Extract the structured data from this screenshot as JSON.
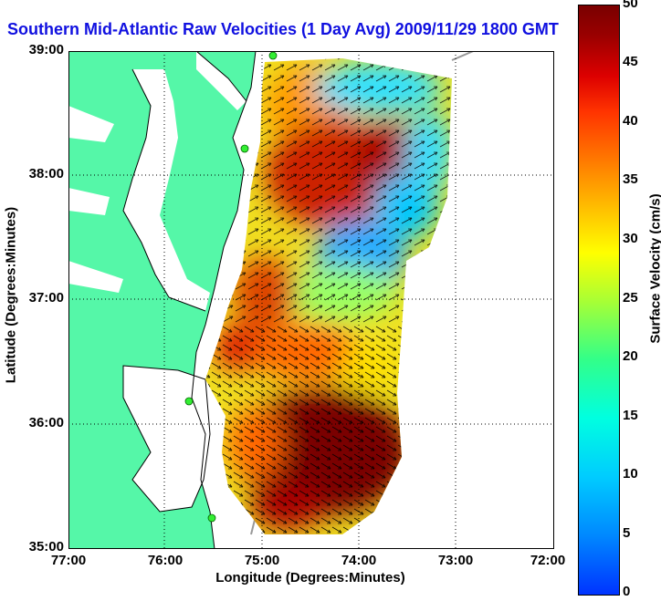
{
  "title": "Southern Mid-Atlantic Raw Velocities (1 Day Avg) 2009/11/29 1800 GMT",
  "map": {
    "x_ticks": [
      "77:00",
      "76:00",
      "75:00",
      "74:00",
      "73:00",
      "72:00"
    ],
    "y_ticks": [
      "39:00",
      "38:00",
      "37:00",
      "36:00",
      "35:00"
    ],
    "xlabel": "Longitude (Degrees:Minutes)",
    "ylabel": "Latitude (Degrees:Minutes)",
    "grid": true,
    "land_color": "#55f7a8",
    "water_color": "#ffffff"
  },
  "colorbar": {
    "label": "Surface Velocity (cm/s)",
    "ticks": [
      "50",
      "45",
      "40",
      "35",
      "30",
      "25",
      "20",
      "15",
      "10",
      "5",
      "0"
    ],
    "range": [
      0,
      50
    ]
  }
}
